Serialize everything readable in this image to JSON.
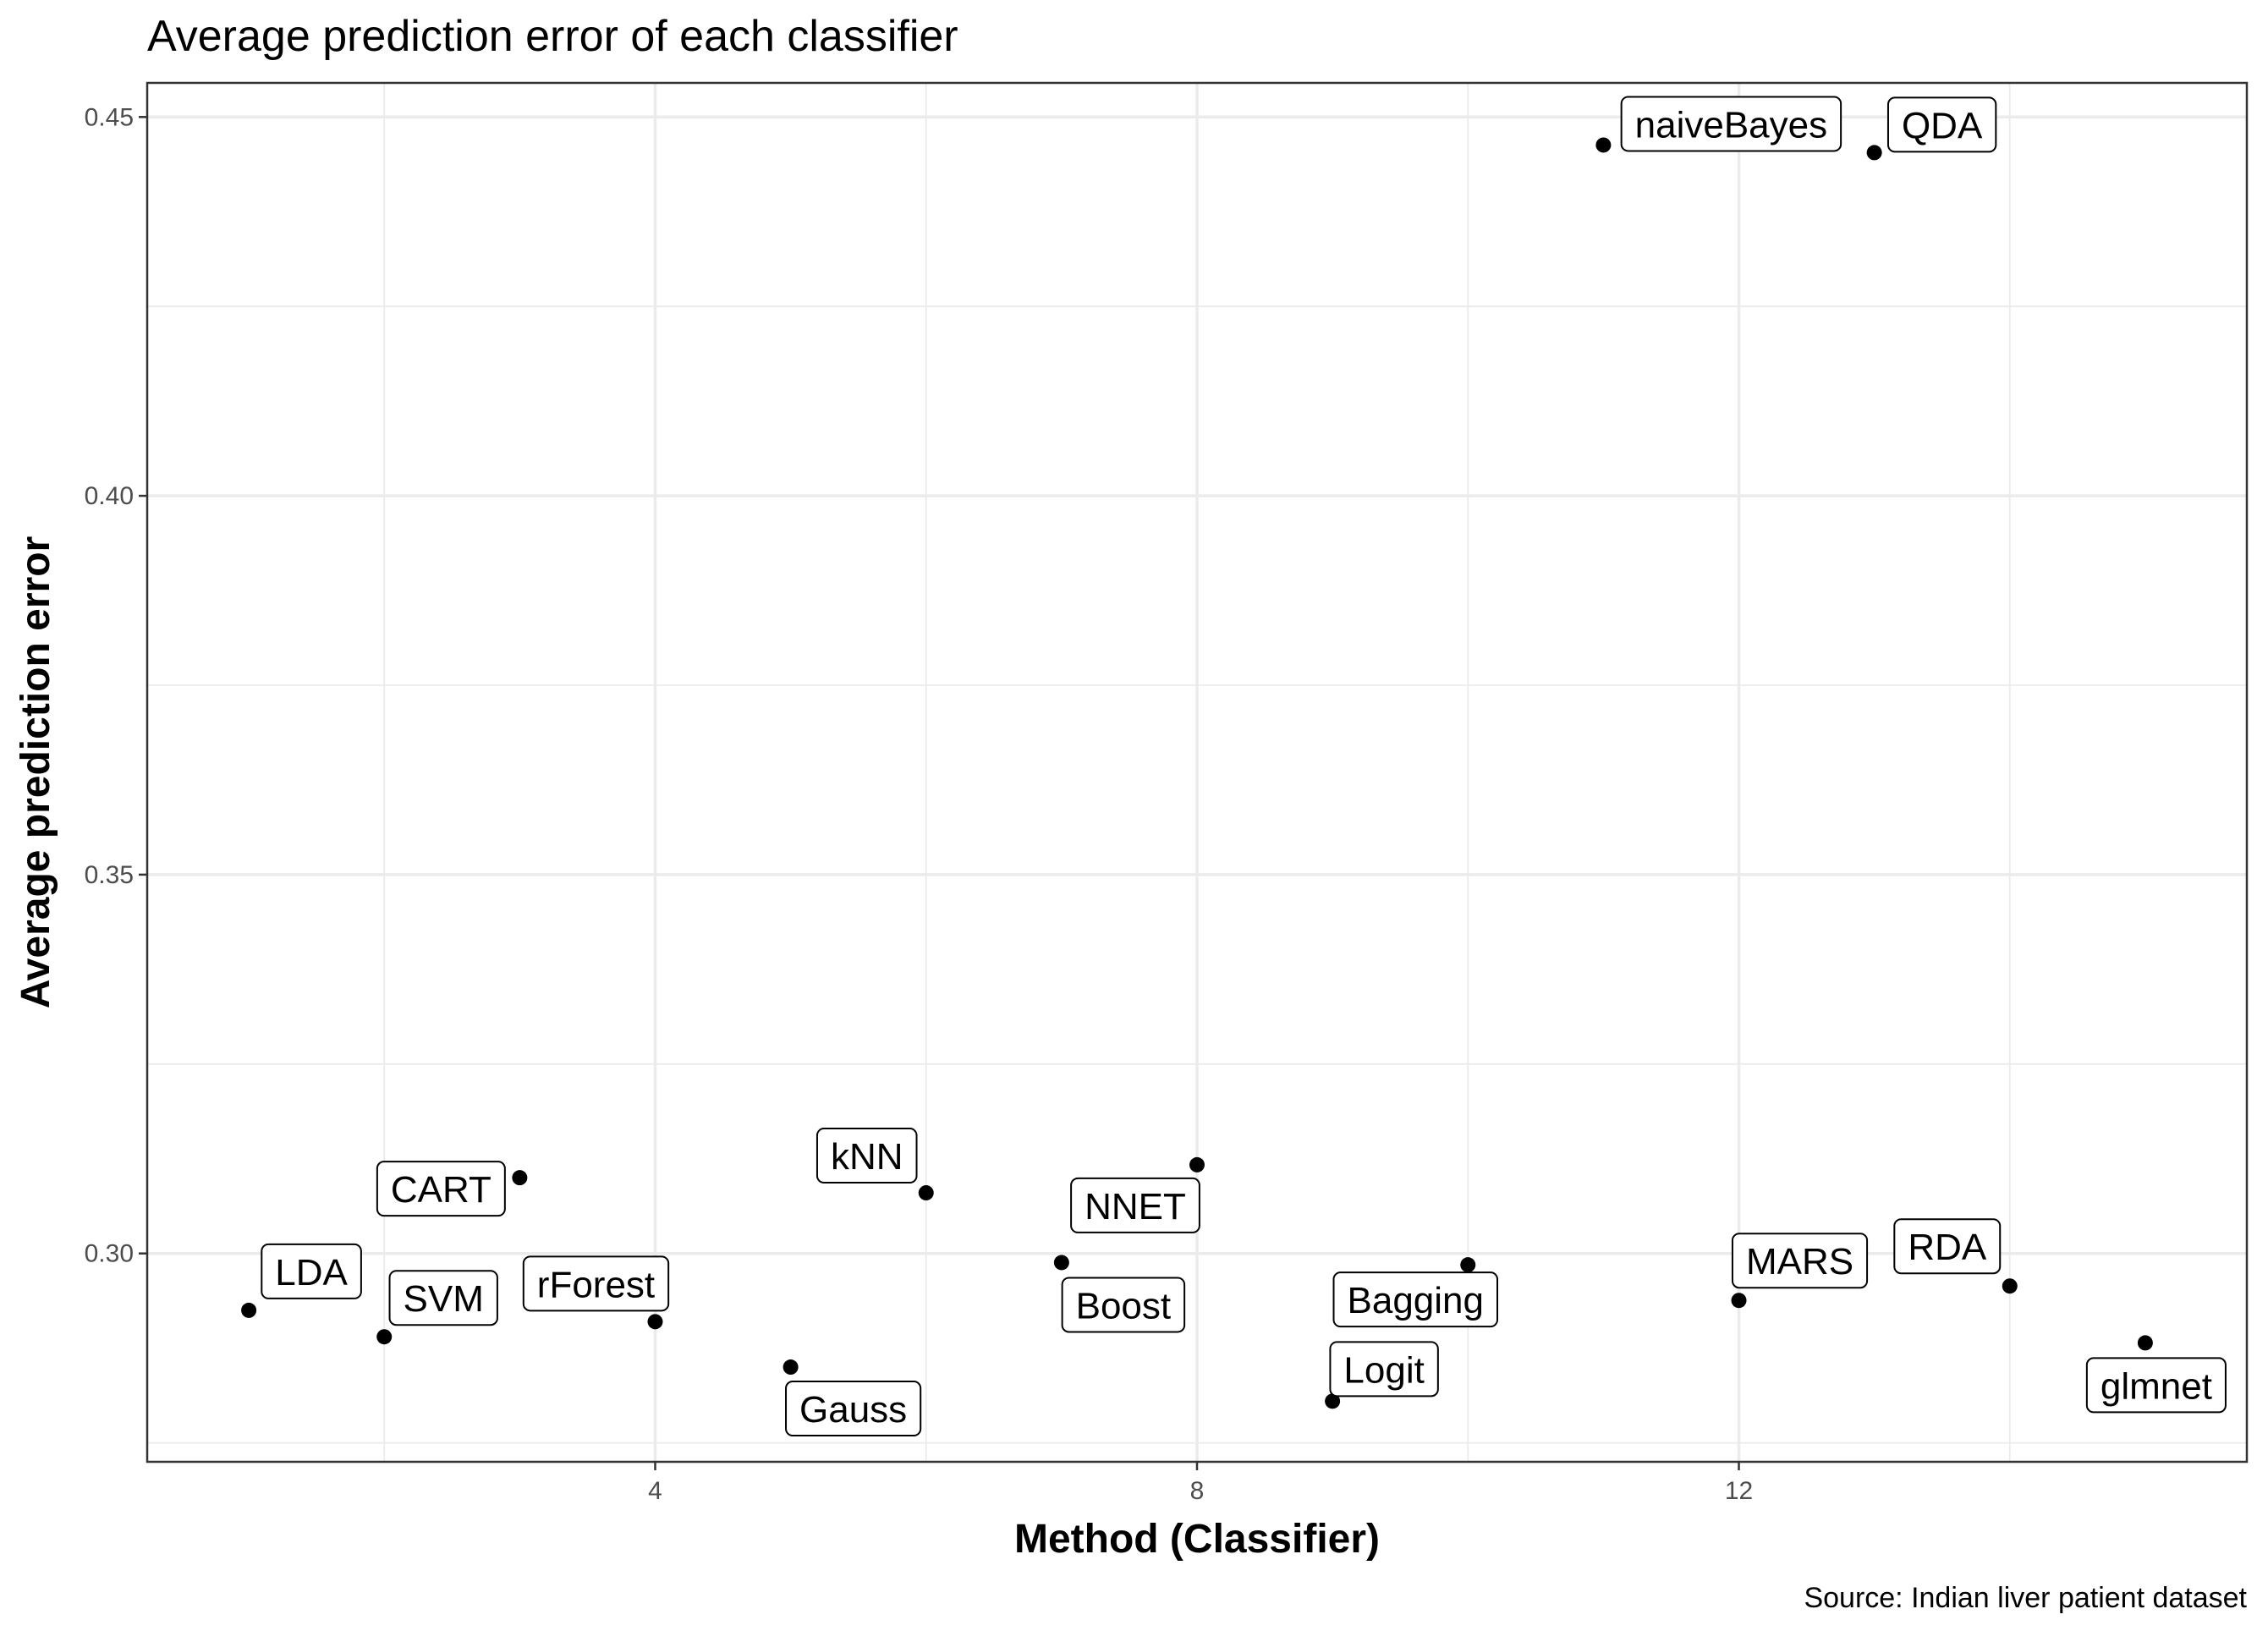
{
  "chart_data": {
    "type": "scatter",
    "title": "Average prediction error of each classifier",
    "xlabel": "Method (Classifier)",
    "ylabel": "Average prediction error",
    "caption": "Source: Indian liver patient dataset",
    "xlim": [
      0.25,
      15.75
    ],
    "ylim": [
      0.2725,
      0.4545
    ],
    "x_ticks": [
      4,
      8,
      12
    ],
    "x_tick_labels": [
      "4",
      "8",
      "12"
    ],
    "y_ticks": [
      0.3,
      0.35,
      0.4,
      0.45
    ],
    "y_tick_labels": [
      "0.30",
      "0.35",
      "0.40",
      "0.45"
    ],
    "x_minor": [
      2,
      6,
      10,
      14
    ],
    "y_minor": [
      0.275,
      0.325,
      0.375,
      0.425
    ],
    "grid": true,
    "points": [
      {
        "x": 1,
        "y": 0.2925,
        "label": "LDA"
      },
      {
        "x": 2,
        "y": 0.289,
        "label": "SVM"
      },
      {
        "x": 3,
        "y": 0.31,
        "label": "CART"
      },
      {
        "x": 4,
        "y": 0.291,
        "label": "rForest"
      },
      {
        "x": 5,
        "y": 0.285,
        "label": "Gauss"
      },
      {
        "x": 6,
        "y": 0.308,
        "label": "kNN"
      },
      {
        "x": 7,
        "y": 0.2988,
        "label": "Boost"
      },
      {
        "x": 8,
        "y": 0.3117,
        "label": "NNET"
      },
      {
        "x": 9,
        "y": 0.2805,
        "label": "Logit"
      },
      {
        "x": 10,
        "y": 0.2985,
        "label": "Bagging"
      },
      {
        "x": 11,
        "y": 0.4463,
        "label": "naiveBayes"
      },
      {
        "x": 12,
        "y": 0.2938,
        "label": "MARS"
      },
      {
        "x": 13,
        "y": 0.4453,
        "label": "QDA"
      },
      {
        "x": 14,
        "y": 0.2957,
        "label": "RDA"
      },
      {
        "x": 15,
        "y": 0.2882,
        "label": "glmnet"
      }
    ]
  }
}
